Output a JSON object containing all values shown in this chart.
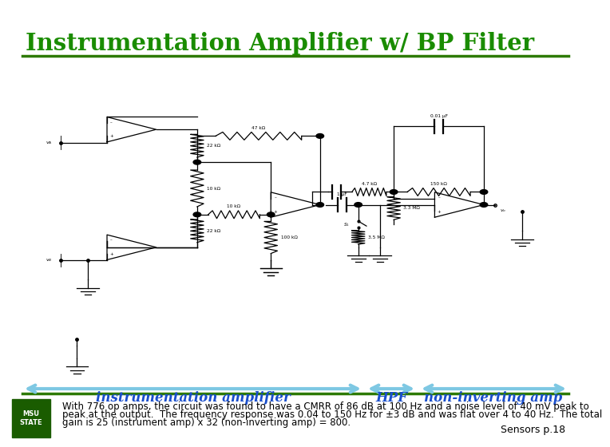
{
  "title": "Instrumentation Amplifier w/ BP Filter",
  "title_color": "#1a8c00",
  "title_fontsize": 21,
  "title_font": "serif",
  "bg_color": "#ffffff",
  "header_line_color": "#2d7a00",
  "footer_line_color": "#2d7a00",
  "arrow_color": "#7ec8e3",
  "label1": "instrumentation amplifier",
  "label2": "HPF",
  "label3": "non-inverting amp",
  "label_color": "#1a4fcc",
  "label_fontsize": 12,
  "body_text1": "With 776 op amps, the circuit was found to have a CMRR of 86 dB at 100 Hz and a noise level of 40 mV peak to",
  "body_text2": "peak at the output.  The frequency response was 0.04 to 150 Hz for ±3 dB and was flat over 4 to 40 Hz.  The total",
  "body_text3": "gain is 25 (instrument amp) x 32 (non-inverting amp) = 800.",
  "body_fontsize": 8.5,
  "footer_text": "Sensors p.18",
  "footer_fontsize": 9
}
